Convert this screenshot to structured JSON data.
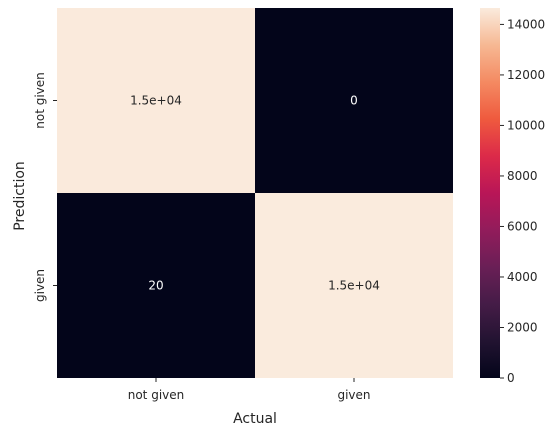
{
  "chart_data": {
    "type": "heatmap",
    "title": "",
    "xlabel": "Actual",
    "ylabel": "Prediction",
    "x_categories": [
      "not given",
      "given"
    ],
    "y_categories": [
      "not given",
      "given"
    ],
    "values": [
      [
        14630,
        0
      ],
      [
        20,
        14650
      ]
    ],
    "annotations": [
      [
        "1.5e+04",
        "0"
      ],
      [
        "20",
        "1.5e+04"
      ]
    ],
    "colorbar": {
      "min": 0,
      "max": 14650,
      "ticks": [
        0,
        2000,
        4000,
        6000,
        8000,
        10000,
        12000,
        14000
      ],
      "colormap": "rocket"
    },
    "annotation_colors": {
      "on_dark": "#ffffff",
      "on_light": "#262626"
    }
  }
}
